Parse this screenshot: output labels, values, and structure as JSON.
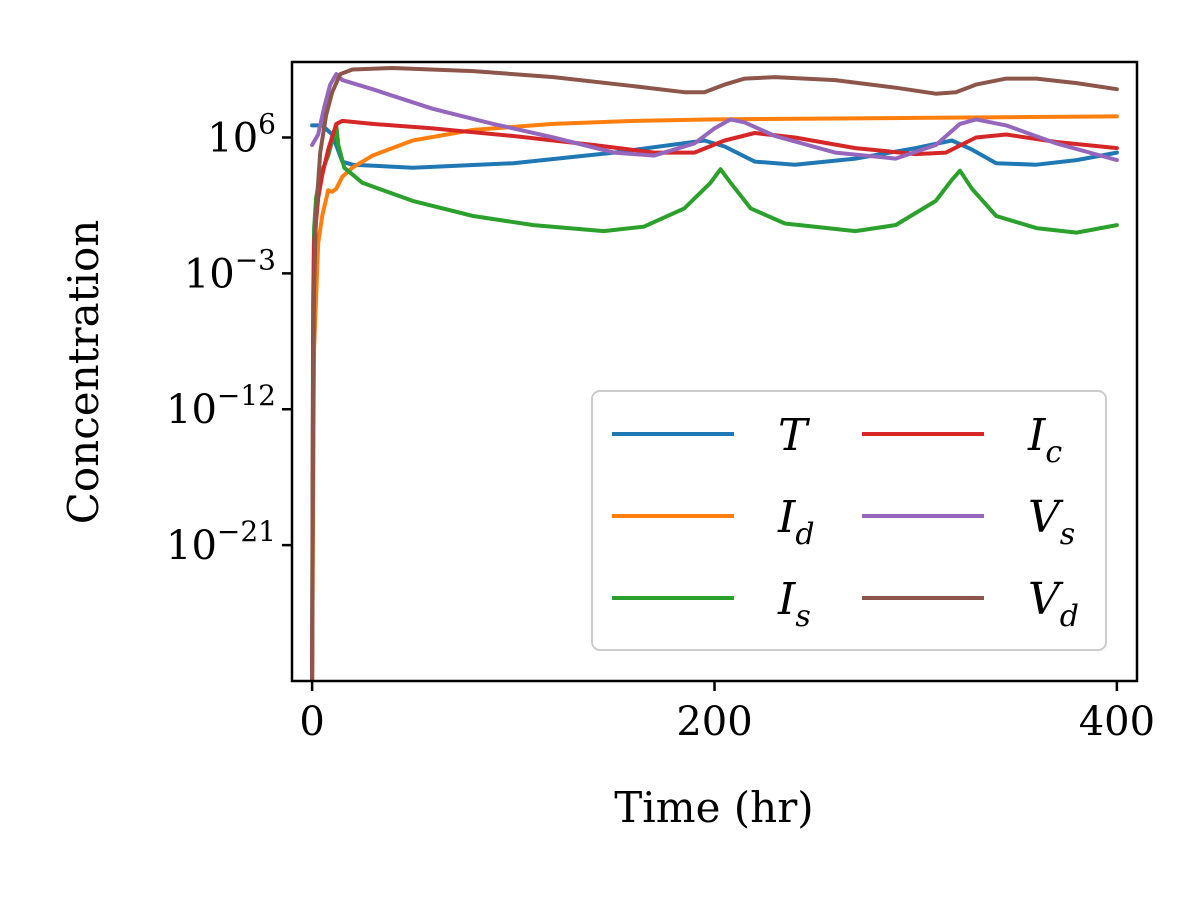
{
  "chart_data": {
    "type": "line",
    "title": "",
    "xlabel": "Time (hr)",
    "ylabel": "Concentration",
    "xlim": [
      -10,
      410
    ],
    "ylim_log10": [
      -30,
      11
    ],
    "yscale": "log",
    "xticks": [
      {
        "value": 0,
        "label": "0"
      },
      {
        "value": 200,
        "label": "200"
      },
      {
        "value": 400,
        "label": "400"
      }
    ],
    "yticks": [
      {
        "value": 6,
        "base": "10",
        "exp": "6"
      },
      {
        "value": -3,
        "base": "10",
        "exp": "−3"
      },
      {
        "value": -12,
        "base": "10",
        "exp": "−12"
      },
      {
        "value": -21,
        "base": "10",
        "exp": "−21"
      }
    ],
    "legend_position": "lower-right",
    "grid": false,
    "series": [
      {
        "name": "T",
        "sym": "T",
        "sub": "",
        "color": "#1f77b4",
        "points": [
          [
            0,
            6.8
          ],
          [
            5,
            6.8
          ],
          [
            10,
            6.2
          ],
          [
            15,
            4.4
          ],
          [
            20,
            4.2
          ],
          [
            50,
            4.0
          ],
          [
            100,
            4.3
          ],
          [
            150,
            5.0
          ],
          [
            195,
            5.8
          ],
          [
            205,
            5.4
          ],
          [
            220,
            4.4
          ],
          [
            240,
            4.2
          ],
          [
            270,
            4.6
          ],
          [
            300,
            5.3
          ],
          [
            318,
            5.8
          ],
          [
            328,
            5.2
          ],
          [
            340,
            4.3
          ],
          [
            360,
            4.2
          ],
          [
            380,
            4.5
          ],
          [
            400,
            5.0
          ]
        ]
      },
      {
        "name": "I_d",
        "sym": "I",
        "sub": "d",
        "color": "#ff7f0e",
        "points": [
          [
            0,
            -30
          ],
          [
            1,
            -8
          ],
          [
            3,
            -1
          ],
          [
            5,
            0.8
          ],
          [
            8,
            2.5
          ],
          [
            10,
            2.4
          ],
          [
            12,
            2.6
          ],
          [
            15,
            3.4
          ],
          [
            20,
            4.0
          ],
          [
            30,
            4.8
          ],
          [
            50,
            5.8
          ],
          [
            80,
            6.5
          ],
          [
            120,
            6.9
          ],
          [
            160,
            7.1
          ],
          [
            200,
            7.2
          ],
          [
            300,
            7.3
          ],
          [
            400,
            7.4
          ]
        ]
      },
      {
        "name": "I_s",
        "sym": "I",
        "sub": "s",
        "color": "#2ca02c",
        "points": [
          [
            0,
            -30
          ],
          [
            0.5,
            -5
          ],
          [
            1,
            0
          ],
          [
            2,
            2
          ],
          [
            4,
            3.5
          ],
          [
            8,
            4.8
          ],
          [
            12,
            6.8
          ],
          [
            13,
            5.5
          ],
          [
            16,
            4.0
          ],
          [
            25,
            3.0
          ],
          [
            50,
            1.8
          ],
          [
            80,
            0.8
          ],
          [
            110,
            0.2
          ],
          [
            145,
            -0.2
          ],
          [
            165,
            0.1
          ],
          [
            185,
            1.3
          ],
          [
            198,
            3.0
          ],
          [
            203,
            3.9
          ],
          [
            208,
            3.0
          ],
          [
            218,
            1.3
          ],
          [
            235,
            0.3
          ],
          [
            270,
            -0.2
          ],
          [
            290,
            0.2
          ],
          [
            310,
            1.8
          ],
          [
            318,
            3.2
          ],
          [
            322,
            3.8
          ],
          [
            328,
            2.6
          ],
          [
            340,
            0.8
          ],
          [
            360,
            0.0
          ],
          [
            380,
            -0.3
          ],
          [
            400,
            0.2
          ]
        ]
      },
      {
        "name": "I_c",
        "sym": "I",
        "sub": "c",
        "color": "#d62728",
        "points": [
          [
            0,
            -30
          ],
          [
            0.5,
            -8
          ],
          [
            1,
            -1
          ],
          [
            3,
            2
          ],
          [
            5,
            3.5
          ],
          [
            8,
            5.2
          ],
          [
            12,
            6.9
          ],
          [
            15,
            7.1
          ],
          [
            30,
            6.9
          ],
          [
            60,
            6.6
          ],
          [
            100,
            6.1
          ],
          [
            140,
            5.5
          ],
          [
            170,
            5.0
          ],
          [
            190,
            5.0
          ],
          [
            205,
            5.8
          ],
          [
            220,
            6.3
          ],
          [
            240,
            6.0
          ],
          [
            270,
            5.3
          ],
          [
            300,
            4.9
          ],
          [
            315,
            5.0
          ],
          [
            330,
            6.0
          ],
          [
            345,
            6.2
          ],
          [
            370,
            5.7
          ],
          [
            400,
            5.3
          ]
        ]
      },
      {
        "name": "V_s",
        "sym": "V",
        "sub": "s",
        "color": "#9467bd",
        "points": [
          [
            0,
            5.5
          ],
          [
            3,
            6.2
          ],
          [
            6,
            8.0
          ],
          [
            9,
            9.5
          ],
          [
            12,
            10.2
          ],
          [
            15,
            9.8
          ],
          [
            30,
            9.2
          ],
          [
            60,
            7.9
          ],
          [
            90,
            6.9
          ],
          [
            120,
            6.0
          ],
          [
            150,
            5.0
          ],
          [
            170,
            4.8
          ],
          [
            190,
            5.6
          ],
          [
            200,
            6.6
          ],
          [
            208,
            7.2
          ],
          [
            215,
            7.0
          ],
          [
            230,
            6.1
          ],
          [
            260,
            5.0
          ],
          [
            290,
            4.6
          ],
          [
            310,
            5.5
          ],
          [
            322,
            6.9
          ],
          [
            330,
            7.2
          ],
          [
            345,
            6.8
          ],
          [
            370,
            5.6
          ],
          [
            400,
            4.5
          ]
        ]
      },
      {
        "name": "V_d",
        "sym": "V",
        "sub": "d",
        "color": "#8c564b",
        "points": [
          [
            0,
            -30
          ],
          [
            0.5,
            -12
          ],
          [
            1,
            -4
          ],
          [
            2,
            1
          ],
          [
            4,
            5
          ],
          [
            7,
            7.5
          ],
          [
            10,
            9.0
          ],
          [
            14,
            10.2
          ],
          [
            20,
            10.5
          ],
          [
            40,
            10.6
          ],
          [
            80,
            10.4
          ],
          [
            120,
            10.0
          ],
          [
            160,
            9.4
          ],
          [
            185,
            9.0
          ],
          [
            195,
            9.0
          ],
          [
            205,
            9.5
          ],
          [
            215,
            9.9
          ],
          [
            230,
            10.0
          ],
          [
            260,
            9.8
          ],
          [
            290,
            9.3
          ],
          [
            310,
            8.9
          ],
          [
            320,
            9.0
          ],
          [
            330,
            9.5
          ],
          [
            345,
            9.9
          ],
          [
            360,
            9.9
          ],
          [
            380,
            9.6
          ],
          [
            400,
            9.2
          ]
        ]
      }
    ]
  }
}
